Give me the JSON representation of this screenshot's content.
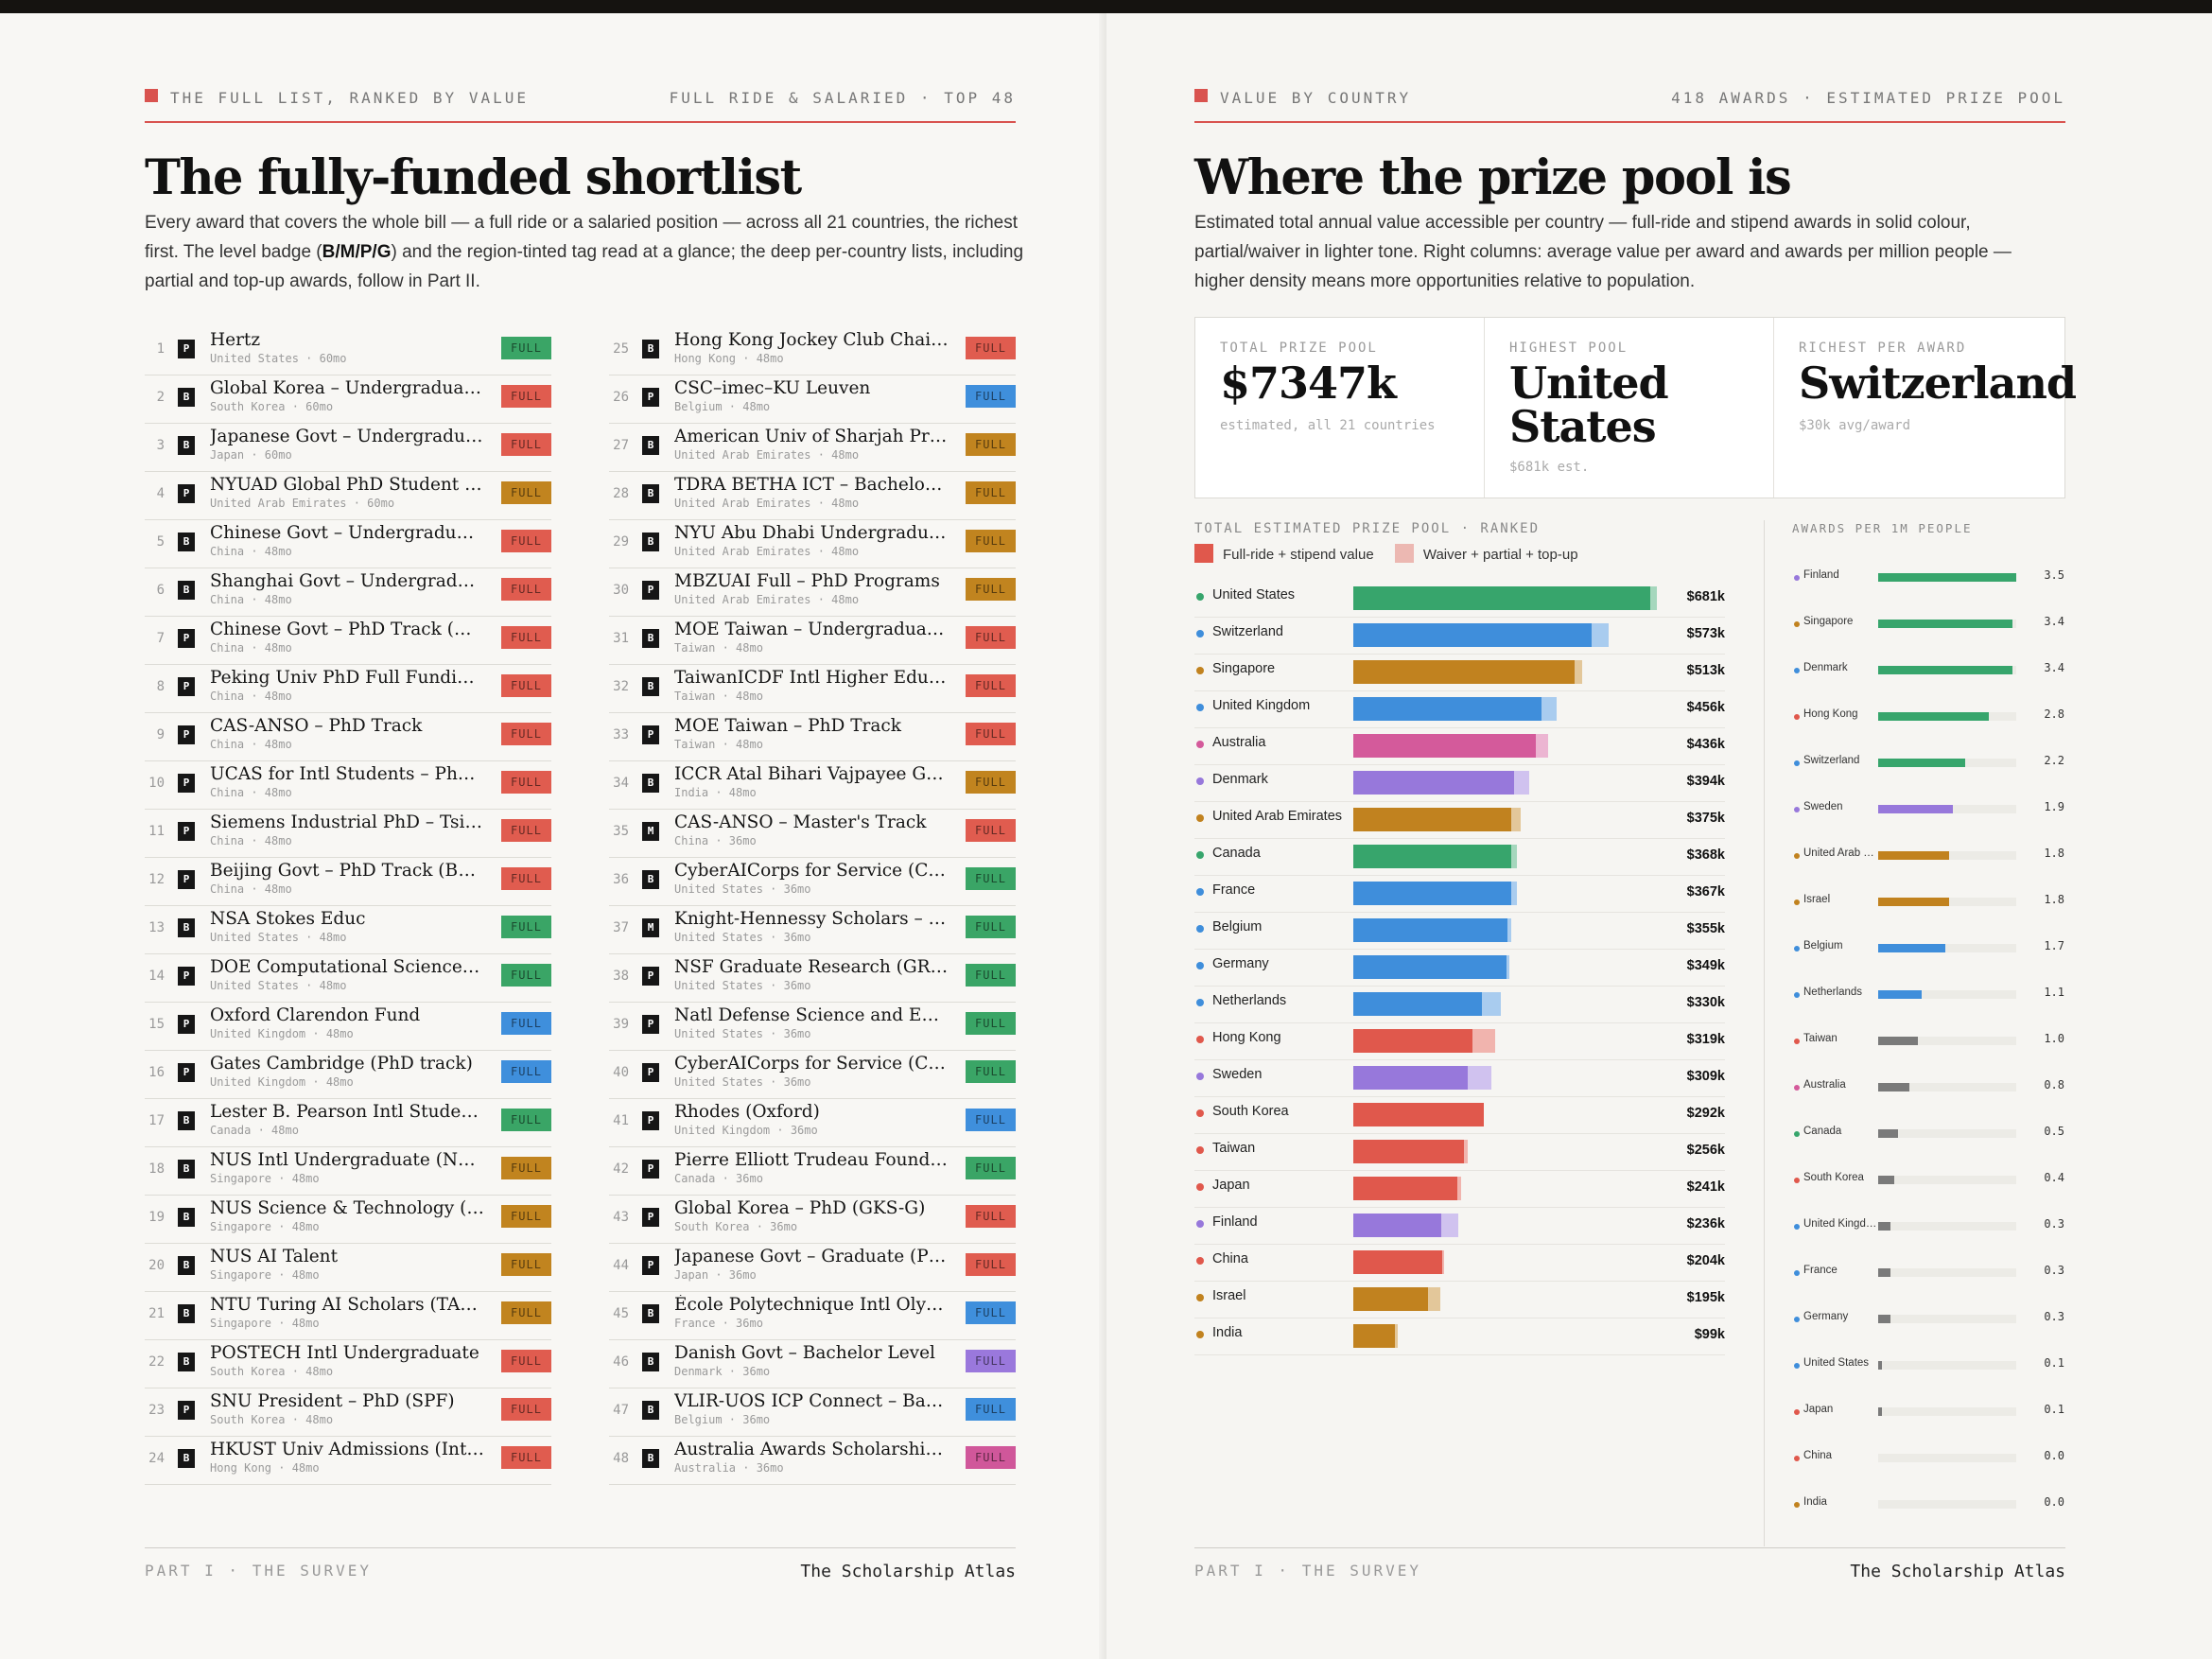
{
  "left": {
    "kicker_left": "THE FULL LIST, RANKED BY VALUE",
    "kicker_right": "FULL RIDE & SALARIED · TOP 48",
    "title": "The fully-funded shortlist",
    "intro_a": "Every award that covers the whole bill — a full ride or a salaried position — across all 21 countries, the richest first. The level badge (",
    "intro_b": "B/M/P/G",
    "intro_c": ") and the region-tinted tag read at a glance; the deep per-country lists, including partial and top-up awards, follow in Part II.",
    "footer_left": "PART I · THE SURVEY",
    "footer_right": "The Scholarship Atlas"
  },
  "tag_colors": {
    "green": "#3aa566",
    "red": "#e05c4f",
    "blue": "#3f8fdc",
    "amber": "#c1841f",
    "purple": "#9a78dc",
    "pink": "#d0579a"
  },
  "rank_list": [
    {
      "n": "1",
      "lvl": "P",
      "name": "Hertz",
      "meta": "United States · 60mo",
      "tag": "FULL",
      "c": "green"
    },
    {
      "n": "2",
      "lvl": "B",
      "name": "Global Korea – Undergraduate (GKS-U)",
      "meta": "South Korea · 60mo",
      "tag": "FULL",
      "c": "red"
    },
    {
      "n": "3",
      "lvl": "B",
      "name": "Japanese Govt – Undergraduate (MEXT)",
      "meta": "Japan · 60mo",
      "tag": "FULL",
      "c": "red"
    },
    {
      "n": "4",
      "lvl": "P",
      "name": "NYUAD Global PhD Student in Computer Science",
      "meta": "United Arab Emirates · 60mo",
      "tag": "FULL",
      "c": "amber"
    },
    {
      "n": "5",
      "lvl": "B",
      "name": "Chinese Govt – Undergraduate Track",
      "meta": "China · 48mo",
      "tag": "FULL",
      "c": "red"
    },
    {
      "n": "6",
      "lvl": "B",
      "name": "Shanghai Govt – Undergraduate Track",
      "meta": "China · 48mo",
      "tag": "FULL",
      "c": "red"
    },
    {
      "n": "7",
      "lvl": "P",
      "name": "Chinese Govt – PhD Track (CSC/MOE)",
      "meta": "China · 48mo",
      "tag": "FULL",
      "c": "red"
    },
    {
      "n": "8",
      "lvl": "P",
      "name": "Peking Univ PhD Full Funding Guarantee",
      "meta": "China · 48mo",
      "tag": "FULL",
      "c": "red"
    },
    {
      "n": "9",
      "lvl": "P",
      "name": "CAS-ANSO – PhD Track",
      "meta": "China · 48mo",
      "tag": "FULL",
      "c": "red"
    },
    {
      "n": "10",
      "lvl": "P",
      "name": "UCAS for Intl Students – PhD Track",
      "meta": "China · 48mo",
      "tag": "FULL",
      "c": "red"
    },
    {
      "n": "11",
      "lvl": "P",
      "name": "Siemens Industrial PhD – Tsinghua Univ",
      "meta": "China · 48mo",
      "tag": "FULL",
      "c": "red"
    },
    {
      "n": "12",
      "lvl": "P",
      "name": "Beijing Govt – PhD Track (BGS)",
      "meta": "China · 48mo",
      "tag": "FULL",
      "c": "red"
    },
    {
      "n": "13",
      "lvl": "B",
      "name": "NSA Stokes Educ",
      "meta": "United States · 48mo",
      "tag": "FULL",
      "c": "green"
    },
    {
      "n": "14",
      "lvl": "P",
      "name": "DOE Computational Science Graduate Fellowship",
      "meta": "United States · 48mo",
      "tag": "FULL",
      "c": "green"
    },
    {
      "n": "15",
      "lvl": "P",
      "name": "Oxford Clarendon Fund",
      "meta": "United Kingdom · 48mo",
      "tag": "FULL",
      "c": "blue"
    },
    {
      "n": "16",
      "lvl": "P",
      "name": "Gates Cambridge (PhD track)",
      "meta": "United Kingdom · 48mo",
      "tag": "FULL",
      "c": "blue"
    },
    {
      "n": "17",
      "lvl": "B",
      "name": "Lester B. Pearson Intl Student Scholarship",
      "meta": "Canada · 48mo",
      "tag": "FULL",
      "c": "green"
    },
    {
      "n": "18",
      "lvl": "B",
      "name": "NUS Intl Undergraduate (NUS-IUS)",
      "meta": "Singapore · 48mo",
      "tag": "FULL",
      "c": "amber"
    },
    {
      "n": "19",
      "lvl": "B",
      "name": "NUS Science & Technology (S&T) Undergraduate",
      "meta": "Singapore · 48mo",
      "tag": "FULL",
      "c": "amber"
    },
    {
      "n": "20",
      "lvl": "B",
      "name": "NUS AI Talent",
      "meta": "Singapore · 48mo",
      "tag": "FULL",
      "c": "amber"
    },
    {
      "n": "21",
      "lvl": "B",
      "name": "NTU Turing AI Scholars (TAISP)",
      "meta": "Singapore · 48mo",
      "tag": "FULL",
      "c": "amber"
    },
    {
      "n": "22",
      "lvl": "B",
      "name": "POSTECH Intl Undergraduate",
      "meta": "South Korea · 48mo",
      "tag": "FULL",
      "c": "red"
    },
    {
      "n": "23",
      "lvl": "P",
      "name": "SNU President – PhD (SPF)",
      "meta": "South Korea · 48mo",
      "tag": "FULL",
      "c": "red"
    },
    {
      "n": "24",
      "lvl": "B",
      "name": "HKUST Univ Admissions (Intl Qualifications)",
      "meta": "Hong Kong · 48mo",
      "tag": "FULL",
      "c": "red"
    },
    {
      "n": "25",
      "lvl": "B",
      "name": "Hong Kong Jockey Club Chairman's",
      "meta": "Hong Kong · 48mo",
      "tag": "FULL",
      "c": "red"
    },
    {
      "n": "26",
      "lvl": "P",
      "name": "CSC–imec–KU Leuven",
      "meta": "Belgium · 48mo",
      "tag": "FULL",
      "c": "blue"
    },
    {
      "n": "27",
      "lvl": "B",
      "name": "American Univ of Sharjah President's Scholarship",
      "meta": "United Arab Emirates · 48mo",
      "tag": "FULL",
      "c": "amber"
    },
    {
      "n": "28",
      "lvl": "B",
      "name": "TDRA BETHA ICT – Bachelor's (UAE)",
      "meta": "United Arab Emirates · 48mo",
      "tag": "FULL",
      "c": "amber"
    },
    {
      "n": "29",
      "lvl": "B",
      "name": "NYU Abu Dhabi Undergraduate Financial Aid",
      "meta": "United Arab Emirates · 48mo",
      "tag": "FULL",
      "c": "amber"
    },
    {
      "n": "30",
      "lvl": "P",
      "name": "MBZUAI Full – PhD Programs",
      "meta": "United Arab Emirates · 48mo",
      "tag": "FULL",
      "c": "amber"
    },
    {
      "n": "31",
      "lvl": "B",
      "name": "MOE Taiwan – Undergraduate Track",
      "meta": "Taiwan · 48mo",
      "tag": "FULL",
      "c": "red"
    },
    {
      "n": "32",
      "lvl": "B",
      "name": "TaiwanICDF Intl Higher Education Scholarship",
      "meta": "Taiwan · 48mo",
      "tag": "FULL",
      "c": "red"
    },
    {
      "n": "33",
      "lvl": "P",
      "name": "MOE Taiwan – PhD Track",
      "meta": "Taiwan · 48mo",
      "tag": "FULL",
      "c": "red"
    },
    {
      "n": "34",
      "lvl": "B",
      "name": "ICCR Atal Bihari Vajpayee General Scholarship",
      "meta": "India · 48mo",
      "tag": "FULL",
      "c": "amber"
    },
    {
      "n": "35",
      "lvl": "M",
      "name": "CAS-ANSO – Master's Track",
      "meta": "China · 36mo",
      "tag": "FULL",
      "c": "red"
    },
    {
      "n": "36",
      "lvl": "B",
      "name": "CyberAICorps for Service (CyberAI) – Bachelor",
      "meta": "United States · 36mo",
      "tag": "FULL",
      "c": "green"
    },
    {
      "n": "37",
      "lvl": "M",
      "name": "Knight-Hennessy Scholars – Stanford",
      "meta": "United States · 36mo",
      "tag": "FULL",
      "c": "green"
    },
    {
      "n": "38",
      "lvl": "P",
      "name": "NSF Graduate Research (GRFP)",
      "meta": "United States · 36mo",
      "tag": "FULL",
      "c": "green"
    },
    {
      "n": "39",
      "lvl": "P",
      "name": "Natl Defense Science and Engineering (NDSEG)",
      "meta": "United States · 36mo",
      "tag": "FULL",
      "c": "green"
    },
    {
      "n": "40",
      "lvl": "P",
      "name": "CyberAICorps for Service (CyberAI) – PhD",
      "meta": "United States · 36mo",
      "tag": "FULL",
      "c": "green"
    },
    {
      "n": "41",
      "lvl": "P",
      "name": "Rhodes (Oxford)",
      "meta": "United Kingdom · 36mo",
      "tag": "FULL",
      "c": "blue"
    },
    {
      "n": "42",
      "lvl": "P",
      "name": "Pierre Elliott Trudeau Found Doctoral Scholarship",
      "meta": "Canada · 36mo",
      "tag": "FULL",
      "c": "green"
    },
    {
      "n": "43",
      "lvl": "P",
      "name": "Global Korea – PhD (GKS-G)",
      "meta": "South Korea · 36mo",
      "tag": "FULL",
      "c": "red"
    },
    {
      "n": "44",
      "lvl": "P",
      "name": "Japanese Govt – Graduate (PhD Track)",
      "meta": "Japan · 36mo",
      "tag": "FULL",
      "c": "red"
    },
    {
      "n": "45",
      "lvl": "B",
      "name": "École Polytechnique Intl Olympiads Scholarship",
      "meta": "France · 36mo",
      "tag": "FULL",
      "c": "blue"
    },
    {
      "n": "46",
      "lvl": "B",
      "name": "Danish Govt – Bachelor Level",
      "meta": "Denmark · 36mo",
      "tag": "FULL",
      "c": "purple"
    },
    {
      "n": "47",
      "lvl": "B",
      "name": "VLIR-UOS ICP Connect – Bachelor",
      "meta": "Belgium · 36mo",
      "tag": "FULL",
      "c": "blue"
    },
    {
      "n": "48",
      "lvl": "B",
      "name": "Australia Awards Scholarships – Undergraduate",
      "meta": "Australia · 36mo",
      "tag": "FULL",
      "c": "pink"
    }
  ],
  "right": {
    "kicker_left": "VALUE BY COUNTRY",
    "kicker_right": "418 AWARDS · ESTIMATED PRIZE POOL",
    "title": "Where the prize pool is",
    "intro": "Estimated total annual value accessible per country — full-ride and stipend awards in solid colour, partial/waiver in lighter tone. Right columns: average value per award and awards per million people — higher density means more opportunities relative to population.",
    "stats": [
      {
        "label": "TOTAL PRIZE POOL",
        "value": "$7347k",
        "sub": "estimated, all 21 countries"
      },
      {
        "label": "HIGHEST POOL",
        "value": "United States",
        "sub": "$681k est."
      },
      {
        "label": "RICHEST PER AWARD",
        "value": "Switzerland",
        "sub": "$30k avg/award"
      }
    ],
    "pool_heading": "TOTAL ESTIMATED PRIZE POOL · RANKED",
    "legend_full": "Full-ride + stipend value",
    "legend_partial": "Waiver + partial + top-up",
    "density_heading": "AWARDS PER 1M PEOPLE",
    "footer_left": "PART I · THE SURVEY",
    "footer_right": "The Scholarship Atlas"
  },
  "region_colors": {
    "green": "#37a56c",
    "blue": "#3f8edb",
    "amber": "#c1821f",
    "pink": "#d45a9b",
    "purple": "#9778db",
    "red": "#e0584c",
    "gray": "#7a7a7a"
  },
  "chart_data": [
    {
      "type": "bar",
      "title": "TOTAL ESTIMATED PRIZE POOL · RANKED",
      "unit": "$k",
      "xlim": [
        0,
        700
      ],
      "categories": [
        "United States",
        "Switzerland",
        "Singapore",
        "United Kingdom",
        "Australia",
        "Denmark",
        "United Arab Emirates",
        "Canada",
        "France",
        "Belgium",
        "Germany",
        "Netherlands",
        "Hong Kong",
        "Sweden",
        "South Korea",
        "Taiwan",
        "Japan",
        "Finland",
        "China",
        "Israel",
        "India"
      ],
      "labels": [
        "$681k",
        "$573k",
        "$513k",
        "$456k",
        "$436k",
        "$394k",
        "$375k",
        "$368k",
        "$367k",
        "$355k",
        "$349k",
        "$330k",
        "$319k",
        "$309k",
        "$292k",
        "$256k",
        "$241k",
        "$236k",
        "$204k",
        "$195k",
        "$99k"
      ],
      "series": [
        {
          "name": "Full-ride + stipend value",
          "values": [
            665,
            534,
            497,
            422,
            410,
            360,
            355,
            354,
            355,
            345,
            343,
            288,
            267,
            257,
            292,
            249,
            234,
            198,
            200,
            168,
            93
          ]
        },
        {
          "name": "Waiver + partial + top-up",
          "values": [
            16,
            39,
            16,
            34,
            26,
            34,
            20,
            14,
            12,
            10,
            6,
            42,
            52,
            52,
            0,
            7,
            7,
            38,
            4,
            27,
            6
          ]
        }
      ],
      "colors": [
        "green",
        "blue",
        "amber",
        "blue",
        "pink",
        "purple",
        "amber",
        "green",
        "blue",
        "blue",
        "blue",
        "blue",
        "red",
        "purple",
        "red",
        "red",
        "red",
        "purple",
        "red",
        "amber",
        "amber"
      ]
    },
    {
      "type": "bar",
      "title": "AWARDS PER 1M PEOPLE",
      "xlim": [
        0,
        3.5
      ],
      "categories": [
        "Finland",
        "Singapore",
        "Denmark",
        "Hong Kong",
        "Switzerland",
        "Sweden",
        "United Arab Emirates",
        "Israel",
        "Belgium",
        "Netherlands",
        "Taiwan",
        "Australia",
        "Canada",
        "South Korea",
        "United Kingdom",
        "France",
        "Germany",
        "United States",
        "Japan",
        "China",
        "India"
      ],
      "display_names": [
        "Finland",
        "Singapore",
        "Denmark",
        "Hong Kong",
        "Switzerland",
        "Sweden",
        "United Arab Emirates",
        "Israel",
        "Belgium",
        "Netherlands",
        "Taiwan",
        "Australia",
        "Canada",
        "South Korea",
        "United Kingdom",
        "France",
        "Germany",
        "United States",
        "Japan",
        "China",
        "India"
      ],
      "values": [
        3.5,
        3.4,
        3.4,
        2.8,
        2.2,
        1.9,
        1.8,
        1.8,
        1.7,
        1.1,
        1.0,
        0.8,
        0.5,
        0.4,
        0.3,
        0.3,
        0.3,
        0.1,
        0.1,
        0.0,
        0.0
      ],
      "labels": [
        "3.5",
        "3.4",
        "3.4",
        "2.8",
        "2.2",
        "1.9",
        "1.8",
        "1.8",
        "1.7",
        "1.1",
        "1.0",
        "0.8",
        "0.5",
        "0.4",
        "0.3",
        "0.3",
        "0.3",
        "0.1",
        "0.1",
        "0.0",
        "0.0"
      ],
      "dot_colors": [
        "purple",
        "amber",
        "blue",
        "red",
        "blue",
        "purple",
        "amber",
        "amber",
        "blue",
        "blue",
        "red",
        "pink",
        "green",
        "red",
        "blue",
        "blue",
        "blue",
        "blue",
        "red",
        "red",
        "amber"
      ],
      "bar_colors": [
        "green",
        "green",
        "green",
        "green",
        "green",
        "purple",
        "amber",
        "amber",
        "blue",
        "blue",
        "gray",
        "gray",
        "gray",
        "gray",
        "gray",
        "gray",
        "gray",
        "gray",
        "gray",
        "gray",
        "gray"
      ]
    }
  ]
}
